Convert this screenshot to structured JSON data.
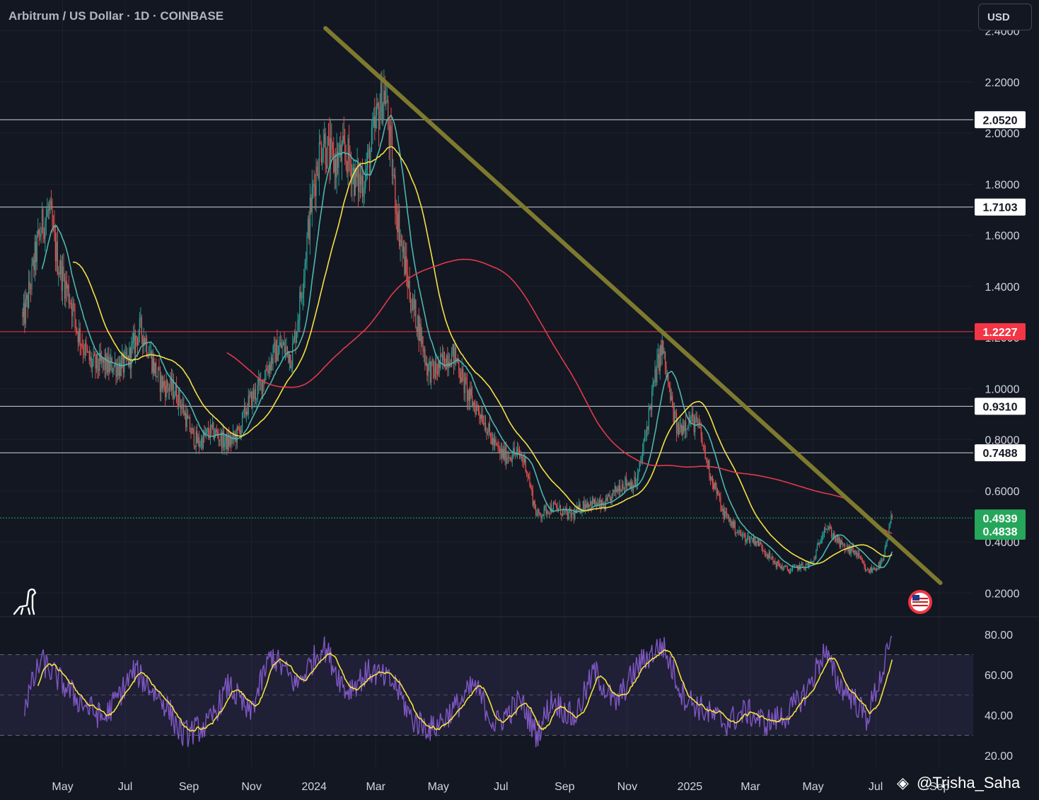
{
  "header": {
    "title": "Arbitrum / US Dollar · 1D · COINBASE",
    "currency": "USD"
  },
  "watermark": "@Trisha_Saha",
  "colors": {
    "background": "#131722",
    "up": "#26a69a",
    "down": "#ef5350",
    "trendline": "#7d7a2e",
    "ma_fast": "#4db6ac",
    "ma_mid": "#f5e043",
    "ma_slow": "#e03a4a",
    "rsi": "#7e57c2",
    "rsi_ma": "#f5e043",
    "price_label_green": "#26a65b",
    "resistance_red": "#f23645"
  },
  "chart_data": {
    "type": "candlestick",
    "title": "Arbitrum / US Dollar · 1D · COINBASE",
    "x_ticks": [
      "May",
      "Jul",
      "Sep",
      "Nov",
      "2024",
      "Mar",
      "May",
      "Jul",
      "Sep",
      "Nov",
      "2025",
      "Mar",
      "May",
      "Jul",
      "Sep"
    ],
    "y_ticks": [
      "2.4000",
      "2.2000",
      "2.0000",
      "1.8000",
      "1.6000",
      "1.4000",
      "1.2000",
      "1.0000",
      "0.8000",
      "0.6000",
      "0.4000",
      "0.2000"
    ],
    "ylim": [
      0.2,
      2.4
    ],
    "price_anchors": [
      {
        "date": "2023-03-23",
        "price": 1.3
      },
      {
        "date": "2023-04-18",
        "price": 1.7
      },
      {
        "date": "2023-05-15",
        "price": 1.2
      },
      {
        "date": "2023-06-15",
        "price": 1.05
      },
      {
        "date": "2023-07-15",
        "price": 1.2
      },
      {
        "date": "2023-08-20",
        "price": 0.95
      },
      {
        "date": "2023-09-11",
        "price": 0.8
      },
      {
        "date": "2023-10-20",
        "price": 0.82
      },
      {
        "date": "2023-11-15",
        "price": 1.1
      },
      {
        "date": "2023-12-10",
        "price": 1.15
      },
      {
        "date": "2024-01-10",
        "price": 2.0
      },
      {
        "date": "2024-02-10",
        "price": 1.8
      },
      {
        "date": "2024-03-10",
        "price": 2.1
      },
      {
        "date": "2024-04-05",
        "price": 1.3
      },
      {
        "date": "2024-04-20",
        "price": 1.1
      },
      {
        "date": "2024-05-20",
        "price": 1.1
      },
      {
        "date": "2024-06-20",
        "price": 0.8
      },
      {
        "date": "2024-07-25",
        "price": 0.7
      },
      {
        "date": "2024-08-05",
        "price": 0.52
      },
      {
        "date": "2024-09-10",
        "price": 0.52
      },
      {
        "date": "2024-10-10",
        "price": 0.56
      },
      {
        "date": "2024-11-10",
        "price": 0.65
      },
      {
        "date": "2024-12-05",
        "price": 1.15
      },
      {
        "date": "2024-12-20",
        "price": 0.85
      },
      {
        "date": "2025-01-10",
        "price": 0.85
      },
      {
        "date": "2025-02-02",
        "price": 0.5
      },
      {
        "date": "2025-03-10",
        "price": 0.38
      },
      {
        "date": "2025-04-08",
        "price": 0.28
      },
      {
        "date": "2025-05-01",
        "price": 0.33
      },
      {
        "date": "2025-05-12",
        "price": 0.45
      },
      {
        "date": "2025-06-10",
        "price": 0.36
      },
      {
        "date": "2025-06-22",
        "price": 0.28
      },
      {
        "date": "2025-07-08",
        "price": 0.33
      },
      {
        "date": "2025-07-17",
        "price": 0.4939
      }
    ],
    "horizontal_levels": [
      {
        "price": "2.0520",
        "value": 2.052,
        "style": "white"
      },
      {
        "price": "1.7103",
        "value": 1.7103,
        "style": "white"
      },
      {
        "price": "1.2227",
        "value": 1.2227,
        "style": "red"
      },
      {
        "price": "0.9310",
        "value": 0.931,
        "style": "white"
      },
      {
        "price": "0.7488",
        "value": 0.7488,
        "style": "white"
      },
      {
        "price": "0.4939",
        "value": 0.4939,
        "style": "green"
      },
      {
        "price": "0.4838",
        "value": 0.4838,
        "style": "green"
      }
    ],
    "trendline": {
      "start": {
        "date": "2024-01-12",
        "price": 2.41
      },
      "end": {
        "date": "2025-09-02",
        "price": 0.24
      }
    },
    "rsi": {
      "y_ticks": [
        "80.00",
        "60.00",
        "40.00",
        "20.00"
      ],
      "ylim": [
        20,
        80
      ],
      "bands": [
        30,
        70
      ],
      "anchors": [
        {
          "date": "2023-03-25",
          "value": 45
        },
        {
          "date": "2023-04-10",
          "value": 67
        },
        {
          "date": "2023-05-15",
          "value": 48
        },
        {
          "date": "2023-06-10",
          "value": 38
        },
        {
          "date": "2023-07-10",
          "value": 62
        },
        {
          "date": "2023-08-10",
          "value": 45
        },
        {
          "date": "2023-08-25",
          "value": 30
        },
        {
          "date": "2023-09-20",
          "value": 35
        },
        {
          "date": "2023-10-10",
          "value": 55
        },
        {
          "date": "2023-10-30",
          "value": 40
        },
        {
          "date": "2023-11-20",
          "value": 70
        },
        {
          "date": "2023-12-15",
          "value": 55
        },
        {
          "date": "2024-01-10",
          "value": 75
        },
        {
          "date": "2024-02-01",
          "value": 52
        },
        {
          "date": "2024-02-25",
          "value": 62
        },
        {
          "date": "2024-03-20",
          "value": 55
        },
        {
          "date": "2024-04-05",
          "value": 38
        },
        {
          "date": "2024-04-25",
          "value": 33
        },
        {
          "date": "2024-05-20",
          "value": 45
        },
        {
          "date": "2024-06-05",
          "value": 55
        },
        {
          "date": "2024-06-25",
          "value": 35
        },
        {
          "date": "2024-07-20",
          "value": 47
        },
        {
          "date": "2024-08-05",
          "value": 30
        },
        {
          "date": "2024-08-20",
          "value": 48
        },
        {
          "date": "2024-09-10",
          "value": 38
        },
        {
          "date": "2024-09-30",
          "value": 62
        },
        {
          "date": "2024-10-20",
          "value": 45
        },
        {
          "date": "2024-11-12",
          "value": 65
        },
        {
          "date": "2024-12-05",
          "value": 75
        },
        {
          "date": "2024-12-25",
          "value": 50
        },
        {
          "date": "2025-01-15",
          "value": 42
        },
        {
          "date": "2025-02-05",
          "value": 36
        },
        {
          "date": "2025-02-25",
          "value": 42
        },
        {
          "date": "2025-03-15",
          "value": 36
        },
        {
          "date": "2025-04-05",
          "value": 40
        },
        {
          "date": "2025-04-25",
          "value": 52
        },
        {
          "date": "2025-05-12",
          "value": 72
        },
        {
          "date": "2025-05-25",
          "value": 56
        },
        {
          "date": "2025-06-10",
          "value": 48
        },
        {
          "date": "2025-06-22",
          "value": 38
        },
        {
          "date": "2025-07-05",
          "value": 58
        },
        {
          "date": "2025-07-17",
          "value": 77
        }
      ]
    }
  }
}
